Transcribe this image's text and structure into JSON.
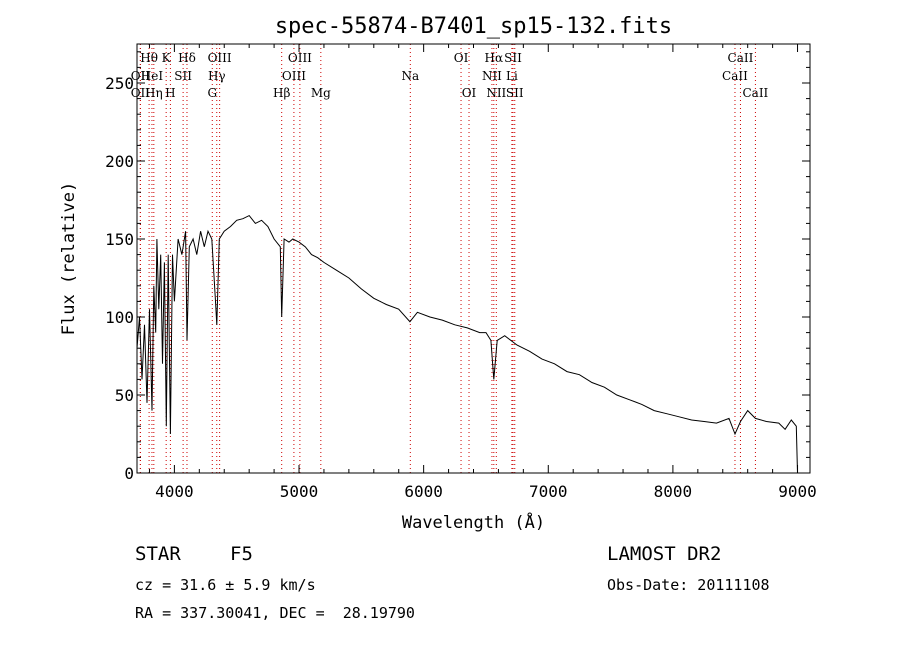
{
  "chart_data": {
    "type": "line",
    "title": "spec-55874-B7401_sp15-132.fits",
    "xlabel": "Wavelength (Å)",
    "ylabel": "Flux (relative)",
    "xlim": [
      3700,
      9100
    ],
    "ylim": [
      0,
      275
    ],
    "xticks": [
      4000,
      5000,
      6000,
      7000,
      8000,
      9000
    ],
    "yticks": [
      0,
      50,
      100,
      150,
      200,
      250
    ],
    "grid": false,
    "line_color": "#000000",
    "marker_color": "#cc0000",
    "series": [
      {
        "x": [
          3700,
          3720,
          3740,
          3760,
          3780,
          3800,
          3820,
          3835,
          3850,
          3860,
          3875,
          3890,
          3905,
          3920,
          3935,
          3950,
          3968,
          3985,
          4000,
          4030,
          4060,
          4090,
          4101,
          4120,
          4150,
          4180,
          4210,
          4240,
          4270,
          4300,
          4330,
          4340,
          4360,
          4400,
          4450,
          4500,
          4550,
          4600,
          4650,
          4700,
          4750,
          4800,
          4850,
          4861,
          4880,
          4920,
          4950,
          5000,
          5050,
          5100,
          5150,
          5200,
          5300,
          5400,
          5500,
          5600,
          5700,
          5800,
          5890,
          5950,
          6050,
          6150,
          6250,
          6350,
          6450,
          6500,
          6540,
          6563,
          6590,
          6650,
          6750,
          6850,
          6950,
          7050,
          7150,
          7250,
          7350,
          7450,
          7550,
          7650,
          7750,
          7850,
          7950,
          8050,
          8150,
          8250,
          8350,
          8450,
          8498,
          8542,
          8600,
          8662,
          8750,
          8850,
          8900,
          8950,
          8990,
          9000
        ],
        "y": [
          80,
          100,
          60,
          95,
          45,
          105,
          40,
          120,
          90,
          150,
          105,
          140,
          70,
          135,
          30,
          140,
          25,
          140,
          110,
          150,
          140,
          155,
          85,
          145,
          150,
          140,
          155,
          145,
          155,
          150,
          110,
          95,
          150,
          155,
          158,
          162,
          163,
          165,
          160,
          162,
          158,
          150,
          145,
          100,
          150,
          148,
          150,
          148,
          145,
          140,
          138,
          135,
          130,
          125,
          118,
          112,
          108,
          105,
          97,
          103,
          100,
          98,
          95,
          93,
          90,
          90,
          85,
          60,
          85,
          88,
          82,
          78,
          73,
          70,
          65,
          63,
          58,
          55,
          50,
          47,
          44,
          40,
          38,
          36,
          34,
          33,
          32,
          35,
          25,
          33,
          40,
          35,
          33,
          32,
          28,
          34,
          30,
          0
        ]
      }
    ],
    "line_markers": [
      {
        "label": "Hθ",
        "x": 3797,
        "row": 0
      },
      {
        "label": "OII",
        "x": 3727,
        "row": 1
      },
      {
        "label": "OII",
        "x": 3727,
        "row": 2
      },
      {
        "label": "HeI",
        "x": 3820,
        "row": 1
      },
      {
        "label": "Hη",
        "x": 3835,
        "row": 2
      },
      {
        "label": "K",
        "x": 3934,
        "row": 0
      },
      {
        "label": "SII",
        "x": 4070,
        "row": 1
      },
      {
        "label": "H",
        "x": 3968,
        "row": 2
      },
      {
        "label": "Hδ",
        "x": 4101,
        "row": 0
      },
      {
        "label": "OIII",
        "x": 4363,
        "row": 0
      },
      {
        "label": "Hγ",
        "x": 4340,
        "row": 1
      },
      {
        "label": "G",
        "x": 4304,
        "row": 2
      },
      {
        "label": "Hβ",
        "x": 4861,
        "row": 2
      },
      {
        "label": "OIII",
        "x": 5007,
        "row": 0
      },
      {
        "label": "OIII",
        "x": 4959,
        "row": 1
      },
      {
        "label": "Mg",
        "x": 5175,
        "row": 2
      },
      {
        "label": "Na",
        "x": 5893,
        "row": 1
      },
      {
        "label": "OI",
        "x": 6300,
        "row": 0
      },
      {
        "label": "OI",
        "x": 6364,
        "row": 2
      },
      {
        "label": "Hα",
        "x": 6563,
        "row": 0
      },
      {
        "label": "SII",
        "x": 6717,
        "row": 0
      },
      {
        "label": "NII",
        "x": 6548,
        "row": 1
      },
      {
        "label": "Li",
        "x": 6708,
        "row": 1
      },
      {
        "label": "NII",
        "x": 6583,
        "row": 2
      },
      {
        "label": "SII",
        "x": 6731,
        "row": 2
      },
      {
        "label": "CaII",
        "x": 8542,
        "row": 0
      },
      {
        "label": "CaII",
        "x": 8498,
        "row": 1
      },
      {
        "label": "CaII",
        "x": 8662,
        "row": 2
      }
    ]
  },
  "info": {
    "class_label": "STAR",
    "subclass": "F5",
    "survey": "LAMOST DR2",
    "velocity": "cz = 31.6 ± 5.9 km/s",
    "obs_date": "Obs-Date: 20111108",
    "coords": "RA = 337.30041, DEC =  28.19790"
  }
}
